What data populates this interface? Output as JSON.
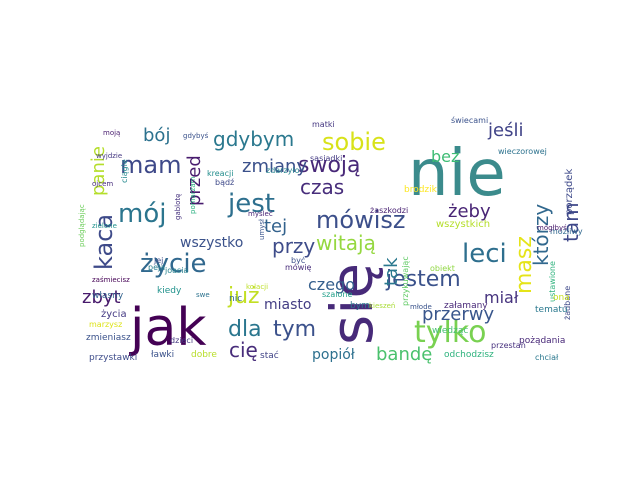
{
  "wordcloud": {
    "words": [
      {
        "text": "nie",
        "color": "#3b8b8c"
      },
      {
        "text": "się",
        "color": "#472a79"
      },
      {
        "text": "jak",
        "color": "#440154"
      },
      {
        "text": "życie",
        "color": "#31688e"
      },
      {
        "text": "jest",
        "color": "#2d6f8e"
      },
      {
        "text": "mój",
        "color": "#2b758e"
      },
      {
        "text": "kaca",
        "color": "#3e4a89"
      },
      {
        "text": "tylko",
        "color": "#79d151"
      },
      {
        "text": "leci",
        "color": "#2e6f8e"
      },
      {
        "text": "mówisz",
        "color": "#3c4f8a"
      },
      {
        "text": "mam",
        "color": "#3e4989"
      },
      {
        "text": "sobie",
        "color": "#d8e219"
      },
      {
        "text": "jestem",
        "color": "#3b528b"
      },
      {
        "text": "gdybym",
        "color": "#2a788e"
      },
      {
        "text": "swoją",
        "color": "#482878"
      },
      {
        "text": "już",
        "color": "#c2df23"
      },
      {
        "text": "masz",
        "color": "#e5e419"
      },
      {
        "text": "którzy",
        "color": "#31688e"
      },
      {
        "text": "tam",
        "color": "#3f4889"
      },
      {
        "text": "dla",
        "color": "#2a768e"
      },
      {
        "text": "tym",
        "color": "#3b518b"
      },
      {
        "text": "panie",
        "color": "#b5de2b"
      },
      {
        "text": "przed",
        "color": "#481c6e"
      },
      {
        "text": "bój",
        "color": "#2c718e"
      },
      {
        "text": "jeśli",
        "color": "#404387"
      },
      {
        "text": "czas",
        "color": "#472d7b"
      },
      {
        "text": "przy",
        "color": "#3e4c8a"
      },
      {
        "text": "witają",
        "color": "#95d840"
      },
      {
        "text": "zmiany",
        "color": "#3b518b"
      },
      {
        "text": "żeby",
        "color": "#482475"
      },
      {
        "text": "bez",
        "color": "#3dbc74"
      },
      {
        "text": "tej",
        "color": "#33628d"
      },
      {
        "text": "cię",
        "color": "#472c7a"
      },
      {
        "text": "przerwy",
        "color": "#39568c"
      },
      {
        "text": "bandę",
        "color": "#4ac16d"
      },
      {
        "text": "zbyt",
        "color": "#481a6c"
      },
      {
        "text": "tak",
        "color": "#2a788e"
      },
      {
        "text": "miał",
        "color": "#46337e"
      },
      {
        "text": "czego",
        "color": "#355f8d"
      },
      {
        "text": "popiół",
        "color": "#2d708e"
      },
      {
        "text": "miasto",
        "color": "#433d84"
      },
      {
        "text": "wszystko",
        "color": "#3b528b"
      },
      {
        "text": "porządek",
        "color": "#3e4989"
      },
      {
        "text": "ustawione",
        "color": "#2db27d"
      },
      {
        "text": "wszystkich",
        "color": "#b5de2b"
      },
      {
        "text": "brodzik",
        "color": "#fde725"
      },
      {
        "text": "żaszkodzi",
        "color": "#482173"
      },
      {
        "text": "szalone",
        "color": "#1f9f88"
      },
      {
        "text": "bym",
        "color": "#2c728e"
      },
      {
        "text": "kiedy",
        "color": "#20928c"
      },
      {
        "text": "nic",
        "color": "#31688e"
      },
      {
        "text": "świecami",
        "color": "#3b528b"
      },
      {
        "text": "wieczorowej",
        "color": "#2c728e"
      },
      {
        "text": "sąsiadki",
        "color": "#443a83"
      },
      {
        "text": "zdarzyło",
        "color": "#26828e"
      },
      {
        "text": "kreacji",
        "color": "#228d8d"
      },
      {
        "text": "bądź",
        "color": "#3e4989"
      },
      {
        "text": "matki",
        "color": "#453781"
      },
      {
        "text": "gdybyś",
        "color": "#3b528b"
      },
      {
        "text": "moją",
        "color": "#481d6f"
      },
      {
        "text": "wyjdzie",
        "color": "#453882"
      },
      {
        "text": "ciągle",
        "color": "#23898e"
      },
      {
        "text": "ojcem",
        "color": "#472e7c"
      },
      {
        "text": "zielone",
        "color": "#20928c"
      },
      {
        "text": "podglądając",
        "color": "#6ccd5a"
      },
      {
        "text": "gablotę",
        "color": "#46327e"
      },
      {
        "text": "pomarzam",
        "color": "#29af7f"
      },
      {
        "text": "myśleć",
        "color": "#482576"
      },
      {
        "text": "umysł",
        "color": "#3a548c"
      },
      {
        "text": "joasia",
        "color": "#26828e"
      },
      {
        "text": "peja",
        "color": "#287d8e"
      },
      {
        "text": "jej",
        "color": "#3d4d8a"
      },
      {
        "text": "kolacji",
        "color": "#bddf26"
      },
      {
        "text": "być",
        "color": "#3c4f8a"
      },
      {
        "text": "mówię",
        "color": "#472c7a"
      },
      {
        "text": "własny",
        "color": "#33638d"
      },
      {
        "text": "swe",
        "color": "#2c728e"
      },
      {
        "text": "obiekt",
        "color": "#90d743"
      },
      {
        "text": "kieszeń",
        "color": "#a8db34"
      },
      {
        "text": "młode",
        "color": "#3a538b"
      },
      {
        "text": "wiedząc",
        "color": "#44bf70"
      },
      {
        "text": "przykuwając",
        "color": "#5ec962"
      },
      {
        "text": "żadbane",
        "color": "#3e4989"
      },
      {
        "text": "ona",
        "color": "#c8e020"
      },
      {
        "text": "tematu",
        "color": "#2a788e"
      },
      {
        "text": "załamany",
        "color": "#482878"
      },
      {
        "text": "możliwy",
        "color": "#31688e"
      },
      {
        "text": "życia",
        "color": "#443983"
      },
      {
        "text": "marzysz",
        "color": "#dde318"
      },
      {
        "text": "zmieniasz",
        "color": "#3b528b"
      },
      {
        "text": "dzieci",
        "color": "#453882"
      },
      {
        "text": "przystawki",
        "color": "#3e4c8a"
      },
      {
        "text": "ławki",
        "color": "#3b528b"
      },
      {
        "text": "dobre",
        "color": "#b8de29"
      },
      {
        "text": "stać",
        "color": "#414487"
      },
      {
        "text": "pożądania",
        "color": "#482878"
      },
      {
        "text": "odchodzisz",
        "color": "#2db27d"
      },
      {
        "text": "przestań",
        "color": "#46307e"
      },
      {
        "text": "chciał",
        "color": "#2a788e"
      },
      {
        "text": "zaśmiecisz",
        "color": "#440154"
      },
      {
        "text": "mógłbyś",
        "color": "#481a6c"
      }
    ]
  }
}
